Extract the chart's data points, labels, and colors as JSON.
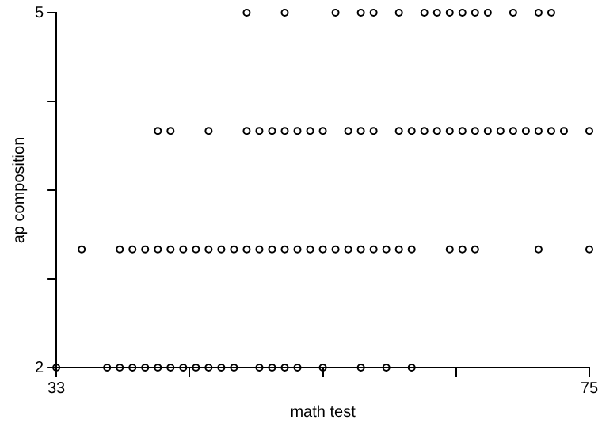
{
  "chart_data": {
    "type": "scatter",
    "xlabel": "math test",
    "ylabel": "ap composition",
    "marker": "circle",
    "grid": false,
    "legend": false,
    "xlim": [
      33,
      75
    ],
    "xticks": [
      33,
      {
        "value": 43.5,
        "label": null
      },
      {
        "value": 54,
        "label": null
      },
      {
        "value": 64.5,
        "label": null
      },
      75
    ],
    "ylim": [
      2,
      5
    ],
    "yticks": [
      2,
      {
        "value": 2.75,
        "label": null
      },
      {
        "value": 3.5,
        "label": null
      },
      {
        "value": 4.25,
        "label": null
      },
      5
    ],
    "series": [
      {
        "color": "#000000",
        "x": [
          33,
          37,
          38,
          39,
          40,
          41,
          42,
          43,
          44,
          45,
          46,
          47,
          49,
          50,
          51,
          52,
          54,
          57,
          59,
          61
        ],
        "values": [
          2,
          2,
          2,
          2,
          2,
          2,
          2,
          2,
          2,
          2,
          2,
          2,
          2,
          2,
          2,
          2,
          2,
          2,
          2,
          2
        ]
      },
      {
        "color": "#000000",
        "x": [
          35,
          38,
          39,
          40,
          41,
          42,
          43,
          44,
          45,
          46,
          47,
          48,
          49,
          50,
          51,
          52,
          53,
          54,
          55,
          56,
          57,
          58,
          59,
          60,
          61,
          64,
          65,
          66,
          71,
          75
        ],
        "values": [
          3,
          3,
          3,
          3,
          3,
          3,
          3,
          3,
          3,
          3,
          3,
          3,
          3,
          3,
          3,
          3,
          3,
          3,
          3,
          3,
          3,
          3,
          3,
          3,
          3,
          3,
          3,
          3,
          3,
          3
        ]
      },
      {
        "color": "#000000",
        "x": [
          41,
          42,
          45,
          48,
          49,
          50,
          51,
          52,
          53,
          54,
          56,
          57,
          58,
          60,
          61,
          62,
          63,
          64,
          65,
          66,
          67,
          68,
          69,
          70,
          71,
          72,
          73,
          75
        ],
        "values": [
          4,
          4,
          4,
          4,
          4,
          4,
          4,
          4,
          4,
          4,
          4,
          4,
          4,
          4,
          4,
          4,
          4,
          4,
          4,
          4,
          4,
          4,
          4,
          4,
          4,
          4,
          4,
          4
        ]
      },
      {
        "color": "#000000",
        "x": [
          48,
          51,
          55,
          57,
          58,
          60,
          62,
          63,
          64,
          65,
          66,
          67,
          69,
          71,
          72
        ],
        "values": [
          5,
          5,
          5,
          5,
          5,
          5,
          5,
          5,
          5,
          5,
          5,
          5,
          5,
          5,
          5
        ]
      }
    ]
  }
}
